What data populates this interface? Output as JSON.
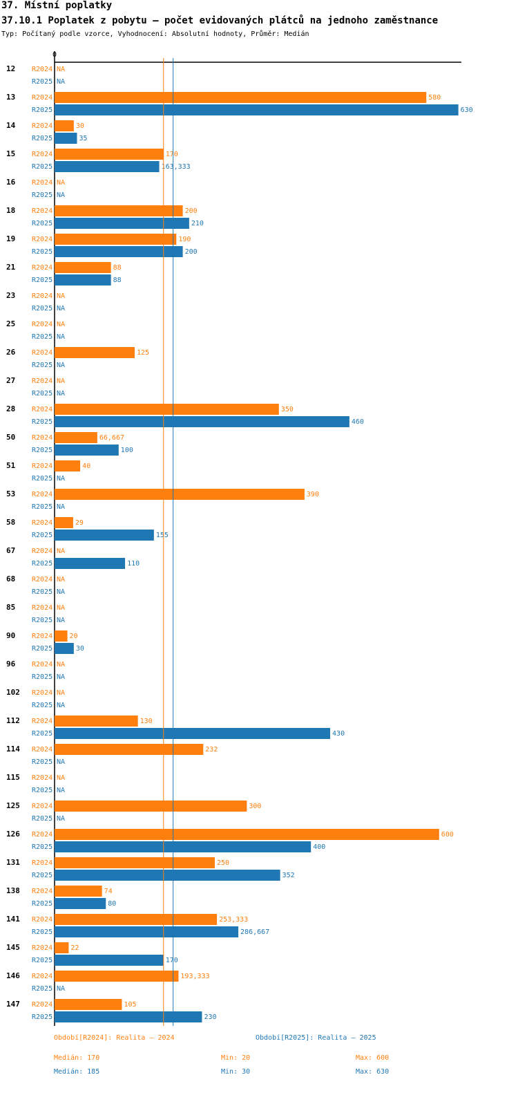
{
  "header": {
    "title": "37. Místní poplatky",
    "subtitle": "37.10.1 Poplatek z pobytu – počet evidovaných plátců na jednoho zaměstnance",
    "meta": "Typ: Počítaný podle vzorce, Vyhodnocení: Absolutní hodnoty, Průměr: Medián"
  },
  "colors": {
    "r2024": "#ff7f0e",
    "r2025": "#1f77b4",
    "axis": "#000000"
  },
  "chart_data": {
    "type": "bar",
    "orientation": "horizontal",
    "axis_zero_label": "0",
    "xlim": [
      0,
      630
    ],
    "series": [
      {
        "name": "R2024",
        "label": "R2024"
      },
      {
        "name": "R2025",
        "label": "R2025"
      }
    ],
    "groups": [
      {
        "id": "12",
        "v2024": null,
        "v2025": null,
        "t2024": "NA",
        "t2025": "NA"
      },
      {
        "id": "13",
        "v2024": 580,
        "v2025": 630,
        "t2024": "580",
        "t2025": "630"
      },
      {
        "id": "14",
        "v2024": 30,
        "v2025": 35,
        "t2024": "30",
        "t2025": "35"
      },
      {
        "id": "15",
        "v2024": 170,
        "v2025": 163.333,
        "t2024": "170",
        "t2025": "163,333"
      },
      {
        "id": "16",
        "v2024": null,
        "v2025": null,
        "t2024": "NA",
        "t2025": "NA"
      },
      {
        "id": "18",
        "v2024": 200,
        "v2025": 210,
        "t2024": "200",
        "t2025": "210"
      },
      {
        "id": "19",
        "v2024": 190,
        "v2025": 200,
        "t2024": "190",
        "t2025": "200"
      },
      {
        "id": "21",
        "v2024": 88,
        "v2025": 88,
        "t2024": "88",
        "t2025": "88"
      },
      {
        "id": "23",
        "v2024": null,
        "v2025": null,
        "t2024": "NA",
        "t2025": "NA"
      },
      {
        "id": "25",
        "v2024": null,
        "v2025": null,
        "t2024": "NA",
        "t2025": "NA"
      },
      {
        "id": "26",
        "v2024": 125,
        "v2025": null,
        "t2024": "125",
        "t2025": "NA"
      },
      {
        "id": "27",
        "v2024": null,
        "v2025": null,
        "t2024": "NA",
        "t2025": "NA"
      },
      {
        "id": "28",
        "v2024": 350,
        "v2025": 460,
        "t2024": "350",
        "t2025": "460"
      },
      {
        "id": "50",
        "v2024": 66.667,
        "v2025": 100,
        "t2024": "66,667",
        "t2025": "100"
      },
      {
        "id": "51",
        "v2024": 40,
        "v2025": null,
        "t2024": "40",
        "t2025": "NA"
      },
      {
        "id": "53",
        "v2024": 390,
        "v2025": null,
        "t2024": "390",
        "t2025": "NA"
      },
      {
        "id": "58",
        "v2024": 29,
        "v2025": 155,
        "t2024": "29",
        "t2025": "155"
      },
      {
        "id": "67",
        "v2024": null,
        "v2025": 110,
        "t2024": "NA",
        "t2025": "110"
      },
      {
        "id": "68",
        "v2024": null,
        "v2025": null,
        "t2024": "NA",
        "t2025": "NA"
      },
      {
        "id": "85",
        "v2024": null,
        "v2025": null,
        "t2024": "NA",
        "t2025": "NA"
      },
      {
        "id": "90",
        "v2024": 20,
        "v2025": 30,
        "t2024": "20",
        "t2025": "30"
      },
      {
        "id": "96",
        "v2024": null,
        "v2025": null,
        "t2024": "NA",
        "t2025": "NA"
      },
      {
        "id": "102",
        "v2024": null,
        "v2025": null,
        "t2024": "NA",
        "t2025": "NA"
      },
      {
        "id": "112",
        "v2024": 130,
        "v2025": 430,
        "t2024": "130",
        "t2025": "430"
      },
      {
        "id": "114",
        "v2024": 232,
        "v2025": null,
        "t2024": "232",
        "t2025": "NA"
      },
      {
        "id": "115",
        "v2024": null,
        "v2025": null,
        "t2024": "NA",
        "t2025": "NA"
      },
      {
        "id": "125",
        "v2024": 300,
        "v2025": null,
        "t2024": "300",
        "t2025": "NA"
      },
      {
        "id": "126",
        "v2024": 600,
        "v2025": 400,
        "t2024": "600",
        "t2025": "400"
      },
      {
        "id": "131",
        "v2024": 250,
        "v2025": 352,
        "t2024": "250",
        "t2025": "352"
      },
      {
        "id": "138",
        "v2024": 74,
        "v2025": 80,
        "t2024": "74",
        "t2025": "80"
      },
      {
        "id": "141",
        "v2024": 253.333,
        "v2025": 286.667,
        "t2024": "253,333",
        "t2025": "286,667"
      },
      {
        "id": "145",
        "v2024": 22,
        "v2025": 170,
        "t2024": "22",
        "t2025": "170"
      },
      {
        "id": "146",
        "v2024": 193.333,
        "v2025": null,
        "t2024": "193,333",
        "t2025": "NA"
      },
      {
        "id": "147",
        "v2024": 105,
        "v2025": 230,
        "t2024": "105",
        "t2025": "230"
      }
    ],
    "median_lines": {
      "r2024": 170,
      "r2025": 185
    }
  },
  "legend": {
    "r2024": "Období[R2024]: Realita – 2024",
    "r2025": "Období[R2025]: Realita – 2025"
  },
  "stats": {
    "r2024": {
      "median": "Medián: 170",
      "min": "Min: 20",
      "max": "Max: 600"
    },
    "r2025": {
      "median": "Medián: 185",
      "min": "Min: 30",
      "max": "Max: 630"
    }
  }
}
